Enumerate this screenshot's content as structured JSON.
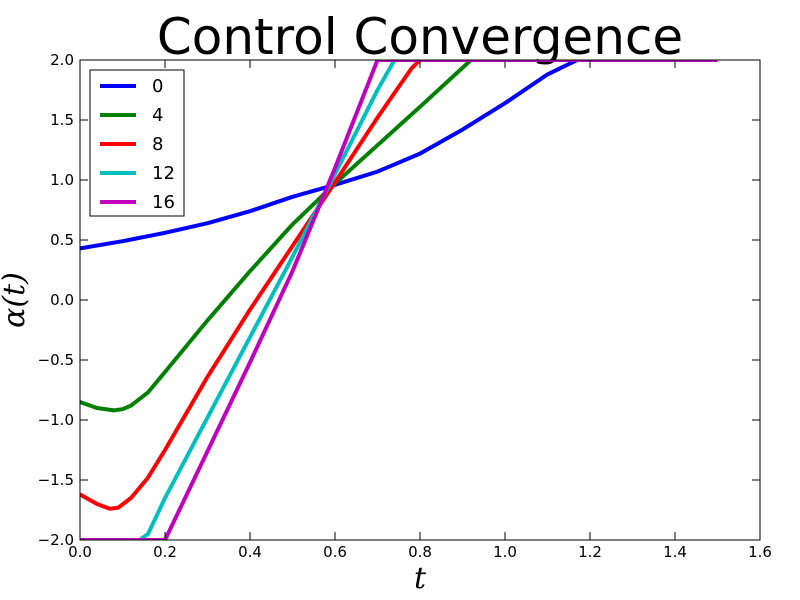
{
  "chart_data": {
    "type": "line",
    "title": "Control Convergence",
    "xlabel": "t",
    "ylabel": "α(t)",
    "xlim": [
      0.0,
      1.6
    ],
    "ylim": [
      -2.0,
      2.0
    ],
    "xticks": [
      "0.0",
      "0.2",
      "0.4",
      "0.6",
      "0.8",
      "1.0",
      "1.2",
      "1.4",
      "1.6"
    ],
    "yticks": [
      "−2.0",
      "−1.5",
      "−1.0",
      "−0.5",
      "0.0",
      "0.5",
      "1.0",
      "1.5",
      "2.0"
    ],
    "grid": false,
    "legend_position": "top-left",
    "series": [
      {
        "name": "0",
        "color": "#0000ff",
        "x": [
          0.0,
          0.1,
          0.2,
          0.3,
          0.4,
          0.5,
          0.6,
          0.7,
          0.8,
          0.9,
          1.0,
          1.1,
          1.17,
          1.2,
          1.3,
          1.4,
          1.5
        ],
        "y": [
          0.43,
          0.49,
          0.56,
          0.64,
          0.74,
          0.86,
          0.96,
          1.07,
          1.22,
          1.42,
          1.64,
          1.88,
          2.0,
          2.0,
          2.0,
          2.0,
          2.0
        ]
      },
      {
        "name": "4",
        "color": "#008000",
        "x": [
          0.0,
          0.04,
          0.08,
          0.1,
          0.12,
          0.16,
          0.2,
          0.3,
          0.4,
          0.5,
          0.6,
          0.7,
          0.8,
          0.92,
          1.0,
          1.2,
          1.5
        ],
        "y": [
          -0.85,
          -0.9,
          -0.92,
          -0.91,
          -0.88,
          -0.77,
          -0.6,
          -0.17,
          0.24,
          0.63,
          0.97,
          1.29,
          1.61,
          2.0,
          2.0,
          2.0,
          2.0
        ]
      },
      {
        "name": "8",
        "color": "#ff0000",
        "x": [
          0.0,
          0.04,
          0.07,
          0.09,
          0.12,
          0.16,
          0.2,
          0.3,
          0.4,
          0.5,
          0.6,
          0.7,
          0.78,
          0.8,
          1.0,
          1.5
        ],
        "y": [
          -1.62,
          -1.7,
          -1.74,
          -1.73,
          -1.65,
          -1.48,
          -1.25,
          -0.64,
          -0.08,
          0.45,
          0.98,
          1.52,
          1.93,
          2.0,
          2.0,
          2.0
        ]
      },
      {
        "name": "12",
        "color": "#00bfbf",
        "x": [
          0.0,
          0.1,
          0.14,
          0.16,
          0.2,
          0.3,
          0.4,
          0.5,
          0.6,
          0.7,
          0.74,
          0.8,
          1.0,
          1.5
        ],
        "y": [
          -2.0,
          -2.0,
          -2.0,
          -1.95,
          -1.65,
          -0.98,
          -0.31,
          0.36,
          1.05,
          1.75,
          2.0,
          2.0,
          2.0,
          2.0
        ]
      },
      {
        "name": "16",
        "color": "#bf00bf",
        "x": [
          0.0,
          0.1,
          0.2,
          0.3,
          0.4,
          0.5,
          0.6,
          0.7,
          0.8,
          1.0,
          1.5
        ],
        "y": [
          -2.0,
          -2.0,
          -2.0,
          -1.26,
          -0.52,
          0.24,
          1.1,
          2.0,
          2.0,
          2.0,
          2.0
        ]
      }
    ]
  }
}
